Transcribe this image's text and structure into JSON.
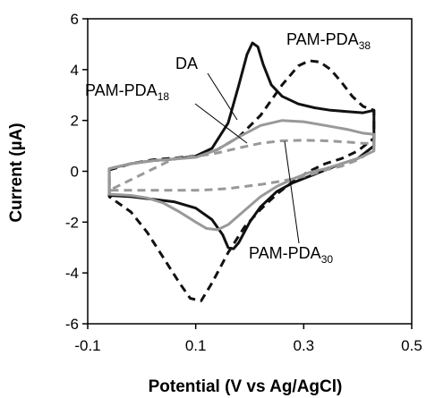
{
  "chart_data": {
    "type": "line",
    "xlabel": "Potential (V vs Ag/AgCl)",
    "ylabel": "Current (µA)",
    "xlim": [
      -0.1,
      0.5
    ],
    "ylim": [
      -6,
      6
    ],
    "xticks": [
      "-0.1",
      "0.1",
      "0.3",
      "0.5"
    ],
    "yticks": [
      "6",
      "4",
      "2",
      "0",
      "-2",
      "-4",
      "-6"
    ],
    "grid": false,
    "colors": {
      "black": "#111111",
      "gray": "#999999"
    },
    "series": [
      {
        "name": "DA",
        "style": "solid",
        "color": "#111111",
        "x": [
          -0.06,
          -0.02,
          0.02,
          0.06,
          0.1,
          0.13,
          0.16,
          0.18,
          0.195,
          0.205,
          0.215,
          0.225,
          0.24,
          0.26,
          0.29,
          0.32,
          0.35,
          0.38,
          0.41,
          0.43,
          0.43,
          0.4,
          0.37,
          0.34,
          0.31,
          0.28,
          0.25,
          0.22,
          0.2,
          0.18,
          0.17,
          0.16,
          0.15,
          0.13,
          0.1,
          0.06,
          0.02,
          -0.02,
          -0.06
        ],
        "y": [
          0.1,
          0.3,
          0.42,
          0.48,
          0.6,
          0.9,
          1.9,
          3.4,
          4.6,
          5.05,
          4.9,
          4.2,
          3.4,
          2.95,
          2.65,
          2.5,
          2.4,
          2.35,
          2.3,
          2.4,
          1.0,
          0.5,
          0.3,
          0.05,
          -0.2,
          -0.45,
          -0.8,
          -1.4,
          -2.0,
          -2.8,
          -3.05,
          -3.0,
          -2.5,
          -1.9,
          -1.45,
          -1.2,
          -1.1,
          -1.0,
          -0.95
        ]
      },
      {
        "name": "PAM-PDA38",
        "style": "dashed",
        "color": "#111111",
        "x": [
          -0.06,
          -0.02,
          0.02,
          0.06,
          0.1,
          0.14,
          0.18,
          0.22,
          0.26,
          0.29,
          0.31,
          0.33,
          0.35,
          0.37,
          0.39,
          0.41,
          0.43,
          0.43,
          0.4,
          0.37,
          0.34,
          0.31,
          0.28,
          0.25,
          0.22,
          0.19,
          0.16,
          0.13,
          0.11,
          0.09,
          0.07,
          0.04,
          0.01,
          -0.02,
          -0.06
        ],
        "y": [
          0.05,
          0.3,
          0.45,
          0.52,
          0.6,
          0.85,
          1.35,
          2.2,
          3.4,
          4.15,
          4.35,
          4.3,
          4.0,
          3.5,
          2.95,
          2.55,
          2.4,
          1.3,
          0.8,
          0.5,
          0.3,
          0.0,
          -0.4,
          -0.9,
          -1.5,
          -2.2,
          -3.2,
          -4.4,
          -5.1,
          -5.0,
          -4.4,
          -3.4,
          -2.4,
          -1.6,
          -1.0
        ]
      },
      {
        "name": "PAM-PDA30",
        "style": "solid",
        "color": "#999999",
        "x": [
          -0.06,
          -0.02,
          0.02,
          0.06,
          0.1,
          0.14,
          0.18,
          0.22,
          0.26,
          0.3,
          0.34,
          0.38,
          0.41,
          0.43,
          0.43,
          0.4,
          0.37,
          0.34,
          0.31,
          0.28,
          0.25,
          0.22,
          0.19,
          0.16,
          0.14,
          0.12,
          0.1,
          0.07,
          0.04,
          0.01,
          -0.02,
          -0.06
        ],
        "y": [
          0.1,
          0.3,
          0.42,
          0.48,
          0.55,
          0.85,
          1.35,
          1.8,
          2.0,
          1.95,
          1.8,
          1.65,
          1.5,
          1.45,
          0.8,
          0.5,
          0.3,
          0.1,
          -0.05,
          -0.3,
          -0.6,
          -1.0,
          -1.55,
          -2.1,
          -2.3,
          -2.25,
          -2.0,
          -1.6,
          -1.25,
          -1.05,
          -0.95,
          -0.9
        ]
      },
      {
        "name": "PAM-PDA18",
        "style": "dashed",
        "color": "#999999",
        "x": [
          0.06,
          0.1,
          0.14,
          0.18,
          0.22,
          0.26,
          0.3,
          0.34,
          0.38,
          0.41,
          0.43,
          0.43,
          0.4,
          0.37,
          0.34,
          0.31,
          0.28,
          0.25,
          0.22,
          0.19,
          0.16,
          0.13,
          0.1,
          0.07,
          0.04,
          0.01,
          -0.02,
          -0.06
        ],
        "y": [
          0.5,
          0.58,
          0.72,
          0.92,
          1.1,
          1.2,
          1.22,
          1.2,
          1.15,
          1.1,
          1.1,
          0.85,
          0.45,
          0.2,
          0.05,
          -0.15,
          -0.3,
          -0.42,
          -0.52,
          -0.6,
          -0.68,
          -0.72,
          -0.75,
          -0.75,
          -0.75,
          -0.75,
          -0.75,
          -0.75
        ]
      }
    ],
    "annotations": [
      {
        "base": "DA",
        "sub": ""
      },
      {
        "base": "PAM-PDA",
        "sub": "38"
      },
      {
        "base": "PAM-PDA",
        "sub": "18"
      },
      {
        "base": "PAM-PDA",
        "sub": "30"
      }
    ]
  }
}
